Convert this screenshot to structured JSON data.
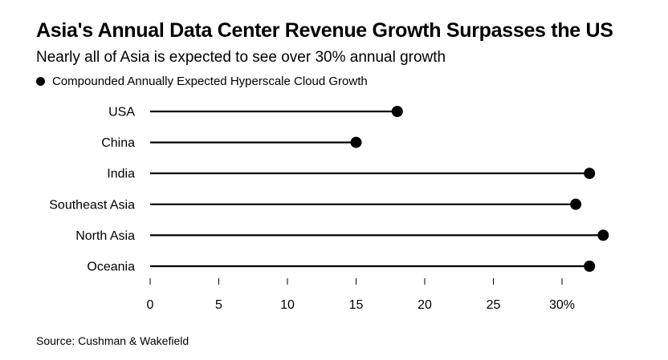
{
  "header": {
    "title": "Asia's Annual Data Center Revenue Growth Surpasses the US",
    "subtitle": "Nearly all of Asia is expected to see over 30% annual growth"
  },
  "legend": {
    "label": "Compounded Annually Expected Hyperscale Cloud Growth",
    "marker": "filled-circle"
  },
  "footer": {
    "source": "Source: Cushman & Wakefield"
  },
  "colors": {
    "series": "#000000",
    "background": "#ffffff"
  },
  "chart_data": {
    "type": "dot-plot",
    "title": "Asia's Annual Data Center Revenue Growth Surpasses the US",
    "subtitle": "Nearly all of Asia is expected to see over 30% annual growth",
    "categories": [
      "USA",
      "China",
      "India",
      "Southeast Asia",
      "North Asia",
      "Oceania"
    ],
    "series": [
      {
        "name": "Compounded Annually Expected Hyperscale Cloud Growth",
        "values": [
          18,
          15,
          32,
          31,
          33,
          32
        ]
      }
    ],
    "xlim": [
      0,
      30
    ],
    "x_ticks": [
      0,
      5,
      10,
      15,
      20,
      25,
      30
    ],
    "x_tick_labels": [
      "0",
      "5",
      "10",
      "15",
      "20",
      "25",
      "30%"
    ],
    "xlabel": "",
    "ylabel": "",
    "grid": false,
    "legend_position": "top-left",
    "source": "Source: Cushman & Wakefield"
  }
}
